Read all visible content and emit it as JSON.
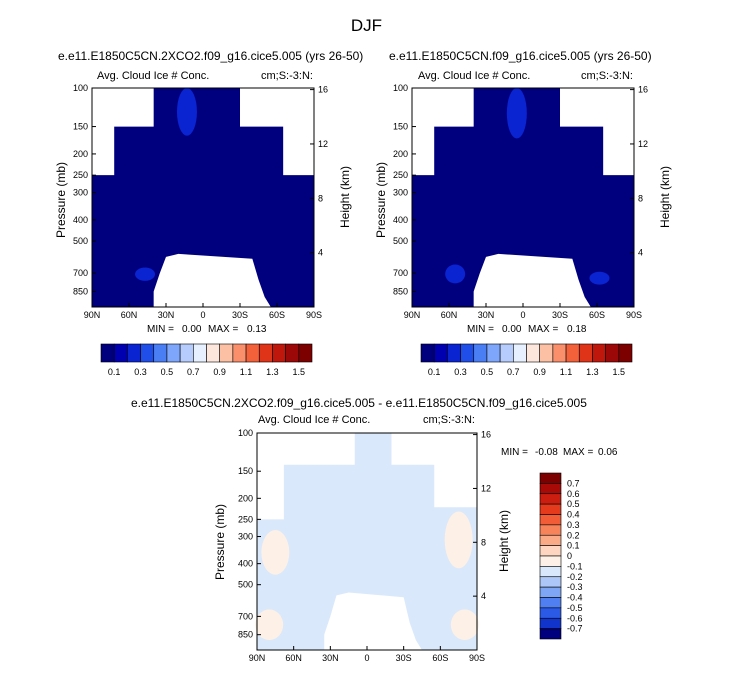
{
  "title": "DJF",
  "common": {
    "ylabel_left": "Pressure (mb)",
    "ylabel_right": "Height (km)",
    "variable": "Avg. Cloud Ice # Conc.",
    "units": "cm;S:-3:N:",
    "min_label": "MIN =",
    "max_label": "MAX ="
  },
  "panels": [
    {
      "title": "e.e11.E1850C5CN.2XCO2.f09_g16.cice5.005 (yrs 26-50)",
      "min": "0.00",
      "max": "0.13"
    },
    {
      "title": "e.e11.E1850C5CN.f09_g16.cice5.005 (yrs 26-50)",
      "min": "0.00",
      "max": "0.18"
    },
    {
      "title": "e.e11.E1850C5CN.2XCO2.f09_g16.cice5.005 - e.e11.E1850C5CN.f09_g16.cice5.005",
      "min": "-0.08",
      "max": "0.06"
    }
  ],
  "colorbar_top": {
    "labels": [
      "0.1",
      "0.3",
      "0.5",
      "0.7",
      "0.9",
      "1.1",
      "1.3",
      "1.5"
    ],
    "colors": [
      "#00007f",
      "#0000b0",
      "#0a24d1",
      "#1f4fe8",
      "#4a7ef5",
      "#7ea6fa",
      "#b5ccfd",
      "#e6f0ff",
      "#fde6dc",
      "#fcc0a4",
      "#fa8f6b",
      "#f2613a",
      "#df3418",
      "#c0170c",
      "#9c0708",
      "#7c0000"
    ]
  },
  "colorbar_diff": {
    "labels": [
      "0.7",
      "0.6",
      "0.5",
      "0.4",
      "0.3",
      "0.2",
      "0.1",
      "0",
      "-0.1",
      "-0.2",
      "-0.3",
      "-0.4",
      "-0.5",
      "-0.6",
      "-0.7"
    ],
    "colors": [
      "#7c0000",
      "#a80a08",
      "#cc1e10",
      "#e63a1c",
      "#f25c36",
      "#f7835b",
      "#fbaa88",
      "#fdd5c0",
      "#fdf0e6",
      "#d9e8fb",
      "#adc8f8",
      "#7ea6f5",
      "#4f7ff0",
      "#2a5ae6",
      "#1034cc",
      "#00007f"
    ]
  },
  "chart_data": [
    {
      "type": "heatmap",
      "title": "e.e11.E1850C5CN.2XCO2.f09_g16.cice5.005 (yrs 26-50)",
      "variable": "Avg. Cloud Ice # Conc.",
      "units": "cm;S:-3:N:",
      "xlabel": "",
      "ylabel": "Pressure (mb)",
      "ylabel_right": "Height (km)",
      "x_ticks": [
        "90N",
        "60N",
        "30N",
        "0",
        "30S",
        "60S",
        "90S"
      ],
      "y_ticks": [
        100,
        150,
        200,
        250,
        300,
        400,
        500,
        700,
        850
      ],
      "y_right_ticks": [
        4,
        8,
        12,
        16
      ],
      "y_scale": "log",
      "ylim": [
        1000,
        100
      ],
      "xlim": [
        90,
        -90
      ],
      "min": 0.0,
      "max": 0.13,
      "fill": "#00007f",
      "mask": {
        "lat": [
          90,
          70,
          70,
          40,
          40,
          20,
          20,
          -5,
          -5,
          -20,
          -20,
          -60,
          -60,
          -80,
          -80,
          -90
        ],
        "top_pressure": [
          250,
          250,
          150,
          150,
          100,
          100,
          100,
          100,
          100,
          100,
          150,
          150,
          250,
          250,
          250,
          250
        ]
      },
      "features": [
        {
          "label": "0.1-0.2",
          "lat": 13,
          "p_top": 100,
          "p_bottom": 165,
          "color": "#0a24d1"
        },
        {
          "label": "0.1-0.2",
          "lat": 47,
          "p_top": 660,
          "p_bottom": 760,
          "color": "#0a24d1"
        }
      ],
      "no_data_region": {
        "lat_range": [
          30,
          -45
        ],
        "p_top": 590,
        "p_bottom": 1000
      }
    },
    {
      "type": "heatmap",
      "title": "e.e11.E1850C5CN.f09_g16.cice5.005 (yrs 26-50)",
      "variable": "Avg. Cloud Ice # Conc.",
      "units": "cm;S:-3:N:",
      "xlabel": "",
      "ylabel": "Pressure (mb)",
      "ylabel_right": "Height (km)",
      "x_ticks": [
        "90N",
        "60N",
        "30N",
        "0",
        "30S",
        "60S",
        "90S"
      ],
      "y_ticks": [
        100,
        150,
        200,
        250,
        300,
        400,
        500,
        700,
        850
      ],
      "y_right_ticks": [
        4,
        8,
        12,
        16
      ],
      "y_scale": "log",
      "ylim": [
        1000,
        100
      ],
      "xlim": [
        90,
        -90
      ],
      "min": 0.0,
      "max": 0.18,
      "fill": "#00007f",
      "features": [
        {
          "label": "0.1-0.2",
          "lat": 5,
          "p_top": 100,
          "p_bottom": 170,
          "color": "#0a24d1"
        },
        {
          "label": "0.1-0.2",
          "lat": 55,
          "p_top": 640,
          "p_bottom": 780,
          "color": "#0a24d1"
        },
        {
          "label": "0.1-0.2",
          "lat": -62,
          "p_top": 690,
          "p_bottom": 790,
          "color": "#0a24d1"
        }
      ],
      "no_data_region": {
        "lat_range": [
          30,
          -45
        ],
        "p_top": 590,
        "p_bottom": 1000
      }
    },
    {
      "type": "heatmap",
      "title": "e.e11.E1850C5CN.2XCO2.f09_g16.cice5.005 - e.e11.E1850C5CN.f09_g16.cice5.005",
      "variable": "Avg. Cloud Ice # Conc.",
      "units": "cm;S:-3:N:",
      "xlabel": "",
      "ylabel": "Pressure (mb)",
      "ylabel_right": "Height (km)",
      "x_ticks": [
        "90N",
        "60N",
        "30N",
        "0",
        "30S",
        "60S",
        "90S"
      ],
      "y_ticks": [
        100,
        150,
        200,
        250,
        300,
        400,
        500,
        700,
        850
      ],
      "y_right_ticks": [
        4,
        8,
        12,
        16
      ],
      "y_scale": "log",
      "ylim": [
        1000,
        100
      ],
      "xlim": [
        90,
        -90
      ],
      "min": -0.08,
      "max": 0.06,
      "fill": "#d9e8fb",
      "features": [
        {
          "label": "0 to 0.1",
          "lat": 75,
          "p_top": 280,
          "p_bottom": 450,
          "color": "#fdf0e6"
        },
        {
          "label": "0 to 0.1",
          "lat": -75,
          "p_top": 230,
          "p_bottom": 420,
          "color": "#fdf0e6"
        },
        {
          "label": "0 to 0.1",
          "lat": 80,
          "p_top": 650,
          "p_bottom": 900,
          "color": "#fdf0e6"
        },
        {
          "label": "0 to 0.1",
          "lat": -80,
          "p_top": 650,
          "p_bottom": 900,
          "color": "#fdf0e6"
        }
      ],
      "no_data_region": {
        "lat_range": [
          25,
          -35
        ],
        "p_top": 560,
        "p_bottom": 1000
      }
    }
  ]
}
